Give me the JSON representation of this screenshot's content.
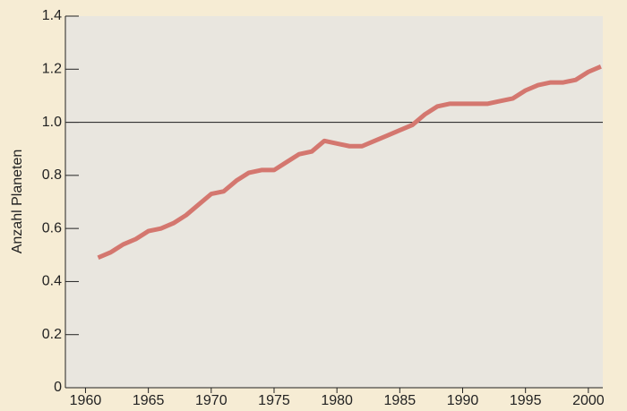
{
  "chart_data": {
    "type": "line",
    "y_label": "Anzahl Planeten",
    "x": [
      1961,
      1962,
      1963,
      1964,
      1965,
      1966,
      1967,
      1968,
      1969,
      1970,
      1971,
      1972,
      1973,
      1974,
      1975,
      1976,
      1977,
      1978,
      1979,
      1980,
      1981,
      1982,
      1983,
      1984,
      1985,
      1986,
      1987,
      1988,
      1989,
      1990,
      1991,
      1992,
      1993,
      1994,
      1995,
      1996,
      1997,
      1998,
      1999,
      2000,
      2001
    ],
    "series": [
      {
        "color": "#d4776f",
        "values": [
          0.49,
          0.51,
          0.54,
          0.56,
          0.59,
          0.6,
          0.62,
          0.65,
          0.69,
          0.73,
          0.74,
          0.78,
          0.81,
          0.82,
          0.82,
          0.85,
          0.88,
          0.89,
          0.93,
          0.92,
          0.91,
          0.91,
          0.93,
          0.95,
          0.97,
          0.99,
          1.03,
          1.06,
          1.07,
          1.07,
          1.07,
          1.07,
          1.08,
          1.09,
          1.12,
          1.14,
          1.15,
          1.15,
          1.16,
          1.19,
          1.21
        ]
      }
    ],
    "xlim": [
      1958.4,
      2001.15
    ],
    "xticks": [
      1960,
      1965,
      1970,
      1975,
      1980,
      1985,
      1990,
      1995,
      2000
    ],
    "ylim": [
      0,
      1.4
    ],
    "yticks": [
      0,
      0.2,
      0.4,
      0.6,
      0.8,
      {
        "value": 1,
        "label": "1.0"
      },
      1.2,
      1.4
    ],
    "reference_line": 1,
    "grid": false
  }
}
